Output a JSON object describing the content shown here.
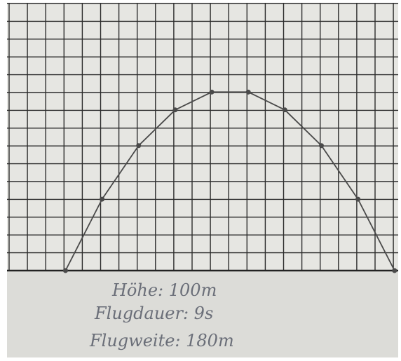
{
  "chart_data": {
    "type": "line",
    "x": [
      0,
      20,
      40,
      60,
      80,
      100,
      120,
      140,
      160,
      180
    ],
    "series": [
      {
        "color": "#4a4a4a",
        "values": [
          0,
          40,
          70,
          90,
          100,
          100,
          90,
          70,
          40,
          0
        ]
      }
    ],
    "xlim": [
      -32,
      182
    ],
    "ylim": [
      0,
      150
    ],
    "annotations": [
      "Höhe: 100m",
      "Flugdauer: 9s",
      "Flugweite: 180m"
    ]
  }
}
